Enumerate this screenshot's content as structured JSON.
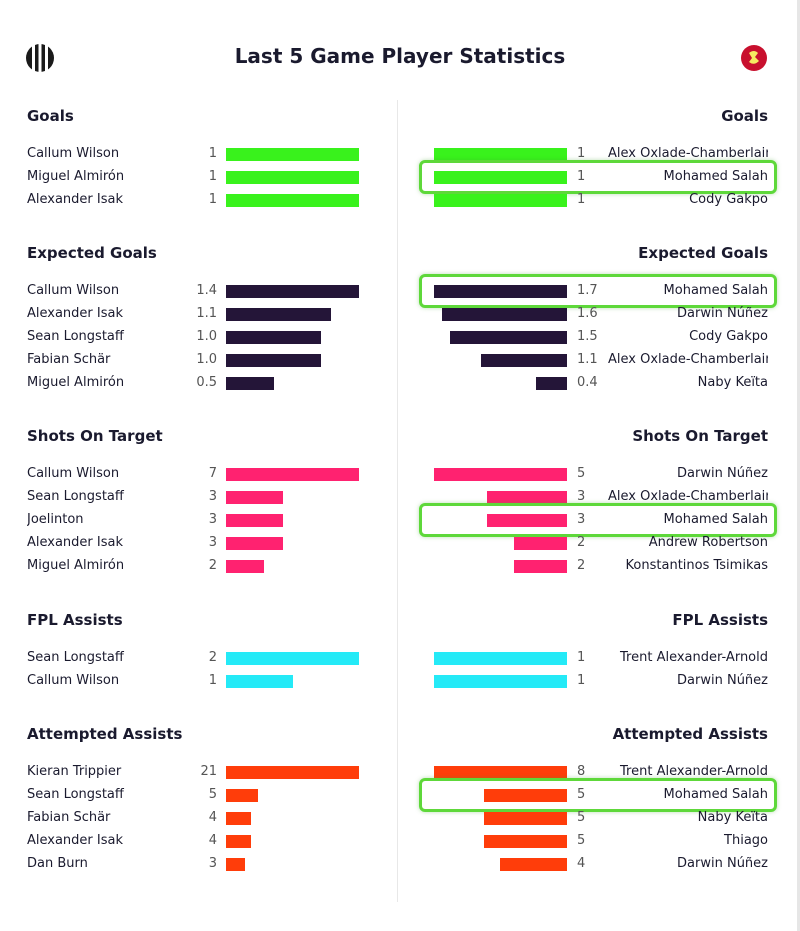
{
  "header": {
    "title": "Last 5 Game Player Statistics",
    "left_team_icon": "newcastle-crest-icon",
    "right_team_icon": "liverpool-crest-icon"
  },
  "colors": {
    "goals": "#39f21c",
    "expected_goals": "#241538",
    "shots_on_target": "#ff2270",
    "fpl_assists": "#24eaf7",
    "attempted_assists": "#ff3d0a",
    "highlight": "#5ed83a"
  },
  "sections": [
    {
      "key": "goals",
      "title": "Goals",
      "color": "#39f21c",
      "left": [
        {
          "name": "Callum Wilson",
          "value": "1"
        },
        {
          "name": "Miguel Almirón",
          "value": "1"
        },
        {
          "name": "Alexander Isak",
          "value": "1"
        }
      ],
      "right": [
        {
          "name": "Alex Oxlade-Chamberlain",
          "value": "1"
        },
        {
          "name": "Mohamed Salah",
          "value": "1",
          "highlighted": true
        },
        {
          "name": "Cody Gakpo",
          "value": "1"
        }
      ]
    },
    {
      "key": "expected_goals",
      "title": "Expected Goals",
      "color": "#241538",
      "left": [
        {
          "name": "Callum Wilson",
          "value": "1.4"
        },
        {
          "name": "Alexander Isak",
          "value": "1.1"
        },
        {
          "name": "Sean Longstaff",
          "value": "1.0"
        },
        {
          "name": "Fabian Schär",
          "value": "1.0"
        },
        {
          "name": "Miguel Almirón",
          "value": "0.5"
        }
      ],
      "right": [
        {
          "name": "Mohamed Salah",
          "value": "1.7",
          "highlighted": true
        },
        {
          "name": "Darwin Núñez",
          "value": "1.6"
        },
        {
          "name": "Cody Gakpo",
          "value": "1.5"
        },
        {
          "name": "Alex Oxlade-Chamberlain",
          "value": "1.1"
        },
        {
          "name": "Naby Keïta",
          "value": "0.4"
        }
      ]
    },
    {
      "key": "shots_on_target",
      "title": "Shots On Target",
      "color": "#ff2270",
      "left": [
        {
          "name": "Callum Wilson",
          "value": "7"
        },
        {
          "name": "Sean Longstaff",
          "value": "3"
        },
        {
          "name": "Joelinton",
          "value": "3"
        },
        {
          "name": "Alexander Isak",
          "value": "3"
        },
        {
          "name": "Miguel Almirón",
          "value": "2"
        }
      ],
      "right": [
        {
          "name": "Darwin Núñez",
          "value": "5"
        },
        {
          "name": "Alex Oxlade-Chamberlain",
          "value": "3"
        },
        {
          "name": "Mohamed Salah",
          "value": "3",
          "highlighted": true
        },
        {
          "name": "Andrew Robertson",
          "value": "2"
        },
        {
          "name": "Konstantinos Tsimikas",
          "value": "2"
        }
      ]
    },
    {
      "key": "fpl_assists",
      "title": "FPL Assists",
      "color": "#24eaf7",
      "left": [
        {
          "name": "Sean Longstaff",
          "value": "2"
        },
        {
          "name": "Callum Wilson",
          "value": "1"
        }
      ],
      "right": [
        {
          "name": "Trent Alexander-Arnold",
          "value": "1"
        },
        {
          "name": "Darwin Núñez",
          "value": "1"
        }
      ]
    },
    {
      "key": "attempted_assists",
      "title": "Attempted Assists",
      "color": "#ff3d0a",
      "left": [
        {
          "name": "Kieran Trippier",
          "value": "21"
        },
        {
          "name": "Sean Longstaff",
          "value": "5"
        },
        {
          "name": "Fabian Schär",
          "value": "4"
        },
        {
          "name": "Alexander Isak",
          "value": "4"
        },
        {
          "name": "Dan Burn",
          "value": "3"
        }
      ],
      "right": [
        {
          "name": "Trent Alexander-Arnold",
          "value": "8"
        },
        {
          "name": "Mohamed Salah",
          "value": "5",
          "highlighted": true
        },
        {
          "name": "Naby Keïta",
          "value": "5"
        },
        {
          "name": "Thiago",
          "value": "5"
        },
        {
          "name": "Darwin Núñez",
          "value": "4"
        }
      ]
    }
  ]
}
